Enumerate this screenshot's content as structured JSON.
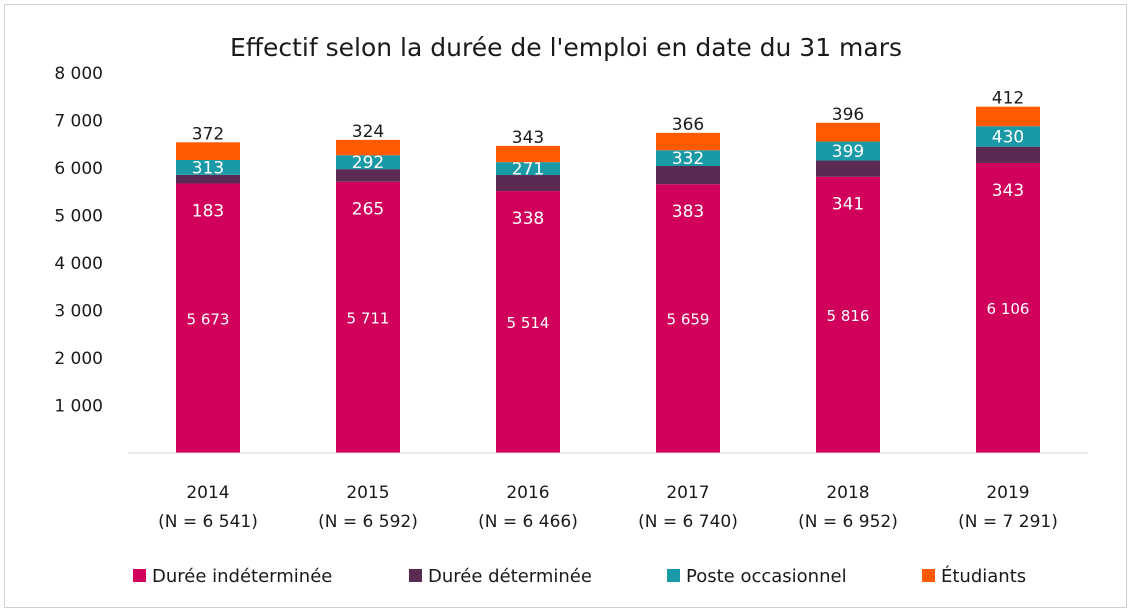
{
  "chart_data": {
    "type": "bar",
    "stacked": true,
    "title": "Effectif selon la durée de l'emploi en date du 31 mars",
    "categories": [
      "2014",
      "2015",
      "2016",
      "2017",
      "2018",
      "2019"
    ],
    "category_subtitles": [
      "(N = 6 541)",
      "(N = 6 592)",
      "(N = 6 466)",
      "(N = 6 740)",
      "(N = 6 952)",
      "(N = 7 291)"
    ],
    "series": [
      {
        "name": "Durée indéterminée",
        "color": "#d1005a",
        "values": [
          5673,
          5711,
          5514,
          5659,
          5816,
          6106
        ],
        "labels": [
          "5 673",
          "5 711",
          "5 514",
          "5 659",
          "5 816",
          "6 106"
        ]
      },
      {
        "name": "Durée déterminée",
        "color": "#5b2a52",
        "values": [
          183,
          265,
          338,
          383,
          341,
          343
        ],
        "labels": [
          "183",
          "265",
          "338",
          "383",
          "341",
          "343"
        ]
      },
      {
        "name": "Poste occasionnel",
        "color": "#1a9aa6",
        "values": [
          313,
          292,
          271,
          332,
          399,
          430
        ],
        "labels": [
          "313",
          "292",
          "271",
          "332",
          "399",
          "430"
        ]
      },
      {
        "name": "Étudiants",
        "color": "#ff5a00",
        "values": [
          372,
          324,
          343,
          366,
          396,
          412
        ],
        "labels": [
          "372",
          "324",
          "343",
          "366",
          "396",
          "412"
        ]
      }
    ],
    "ylim": [
      0,
      8000
    ],
    "yticks": [
      1000,
      2000,
      3000,
      4000,
      5000,
      6000,
      7000,
      8000
    ],
    "ytick_labels": [
      "1 000",
      "2 000",
      "3 000",
      "4 000",
      "5 000",
      "6 000",
      "7 000",
      "8 000"
    ],
    "grid": false,
    "legend_position": "bottom"
  }
}
